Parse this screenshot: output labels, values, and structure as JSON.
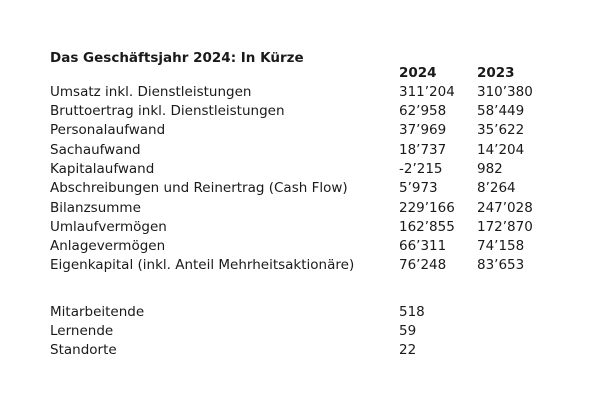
{
  "page": {
    "title": "Das Geschäftsjahr 2024: In Kürze"
  },
  "table": {
    "col_headers": [
      "2024",
      "2023"
    ],
    "rows": [
      {
        "label": "Umsatz inkl. Dienstleistungen",
        "v2024": "311’204",
        "v2023": "310’380"
      },
      {
        "label": "Bruttoertrag inkl. Dienstleistungen",
        "v2024": "62’958",
        "v2023": "58’449"
      },
      {
        "label": "Personalaufwand",
        "v2024": "37’969",
        "v2023": "35’622"
      },
      {
        "label": "Sachaufwand",
        "v2024": "18’737",
        "v2023": "14’204"
      },
      {
        "label": "Kapitalaufwand",
        "v2024": "-2’215",
        "v2023": "982"
      },
      {
        "label": "Abschreibungen und Reinertrag (Cash Flow)",
        "v2024": "5’973",
        "v2023": "8’264"
      },
      {
        "label": "Bilanzsumme",
        "v2024": "229’166",
        "v2023": "247’028"
      },
      {
        "label": "Umlaufvermögen",
        "v2024": "162’855",
        "v2023": "172’870"
      },
      {
        "label": "Anlagevermögen",
        "v2024": "66’311",
        "v2023": "74’158"
      },
      {
        "label": "Eigenkapital (inkl. Anteil Mehrheitsaktionäre)",
        "v2024": "76’248",
        "v2023": "83’653"
      }
    ]
  },
  "stats": {
    "rows": [
      {
        "label": "Mitarbeitende",
        "value": "518"
      },
      {
        "label": "Lernende",
        "value": "59"
      },
      {
        "label": "Standorte",
        "value": "22"
      }
    ]
  },
  "colors": {
    "text": "#1a1a1a",
    "background": "#ffffff"
  }
}
